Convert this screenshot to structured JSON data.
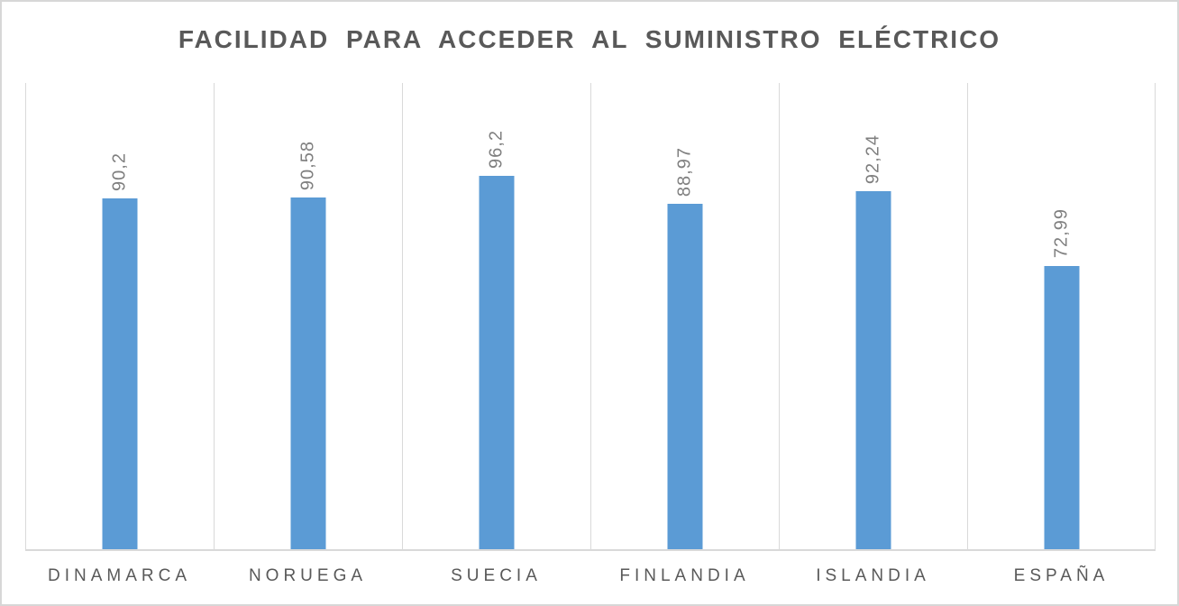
{
  "chart_data": {
    "type": "bar",
    "title": "FACILIDAD PARA ACCEDER AL SUMINISTRO ELÉCTRICO",
    "categories": [
      "DINAMARCA",
      "NORUEGA",
      "SUECIA",
      "FINLANDIA",
      "ISLANDIA",
      "ESPAÑA"
    ],
    "values": [
      90.2,
      90.58,
      96.2,
      88.97,
      92.24,
      72.99
    ],
    "value_labels": [
      "90,2",
      "90,58",
      "96,2",
      "88,97",
      "92,24",
      "72,99"
    ],
    "xlabel": "",
    "ylabel": "",
    "ylim": [
      0,
      120
    ],
    "grid": "vertical category boundaries only",
    "legend_position": "none",
    "data_label_rotation_deg": 90,
    "colors": {
      "bar": "#5b9bd5",
      "title_text": "#595959",
      "category_label_text": "#595959",
      "data_label_text": "#7f7f7f",
      "gridline": "#d9d9d9",
      "axis_line": "#d9d9d9",
      "frame_border": "#d7d7d7",
      "background": "#ffffff"
    }
  }
}
